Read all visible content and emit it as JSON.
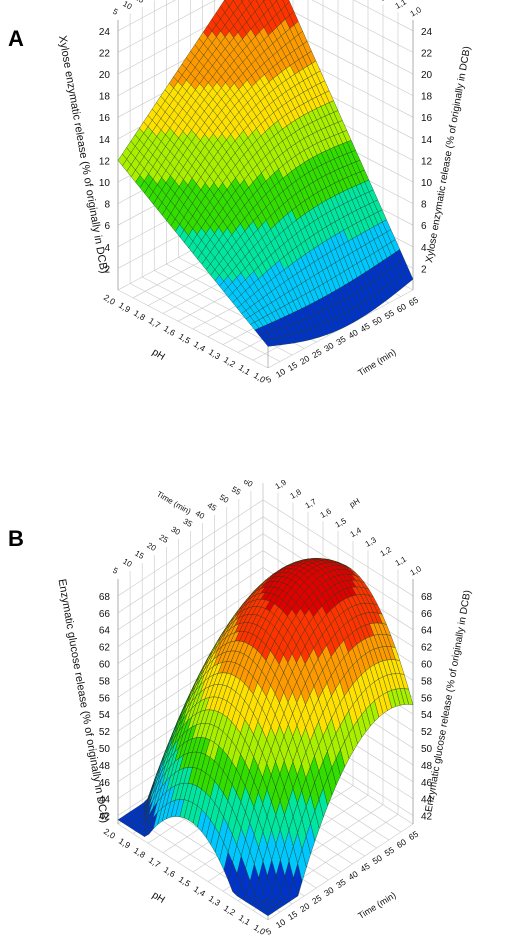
{
  "figure": {
    "panel_labels": [
      "A",
      "B"
    ]
  },
  "chart_data": [
    {
      "panel": "A",
      "type": "surface3d",
      "zlabel": "Xylose enzymatic release (% of originally in DCB)",
      "xlabel": "Time (min)",
      "ylabel": "pH",
      "zticks": [
        "2",
        "4",
        "6",
        "8",
        "10",
        "12",
        "14",
        "16",
        "18",
        "20",
        "22",
        "24"
      ],
      "timeticks": [
        "5",
        "10",
        "15",
        "20",
        "25",
        "30",
        "35",
        "40",
        "45",
        "50",
        "55",
        "60",
        "65"
      ],
      "phticks": [
        "1,0",
        "1,1",
        "1,2",
        "1,3",
        "1,4",
        "1,5",
        "1,6",
        "1,7",
        "1,8",
        "1,9",
        "2,0"
      ],
      "time_range": [
        5,
        65
      ],
      "ph_range": [
        1.0,
        2.0
      ],
      "zlim": [
        0,
        25
      ],
      "corner_values": {
        "t5_ph1": 2,
        "t65_ph1": 1,
        "t5_ph2": 12,
        "t65_ph2": 25
      },
      "colormap": [
        "#0033cc",
        "#00c8ff",
        "#00e6a0",
        "#33dd00",
        "#aaee00",
        "#ffe000",
        "#ff9900",
        "#ff3300",
        "#e00000"
      ]
    },
    {
      "panel": "B",
      "type": "surface3d",
      "zlabel": "Enzymatic glucose release (% of originally in DCB)",
      "xlabel": "Time (min)",
      "ylabel": "pH",
      "zticks": [
        "42",
        "44",
        "46",
        "48",
        "50",
        "52",
        "54",
        "56",
        "58",
        "60",
        "62",
        "64",
        "66",
        "68"
      ],
      "timeticks": [
        "5",
        "10",
        "15",
        "20",
        "25",
        "30",
        "35",
        "40",
        "45",
        "50",
        "55",
        "60",
        "65"
      ],
      "phticks": [
        "1,0",
        "1,1",
        "1,2",
        "1,3",
        "1,4",
        "1,5",
        "1,6",
        "1,7",
        "1,8",
        "1,9",
        "2,0"
      ],
      "time_range": [
        5,
        65
      ],
      "ph_range": [
        1.0,
        2.0
      ],
      "zlim": [
        41,
        70
      ],
      "corner_values": {
        "t5_ph1": 42,
        "t65_ph1": 55,
        "t5_ph2": 44,
        "t65_ph2": 57
      },
      "peak": {
        "time": 50,
        "ph": 1.45,
        "value": 69
      },
      "colormap": [
        "#0033cc",
        "#00c8ff",
        "#00e6a0",
        "#33dd00",
        "#aaee00",
        "#ffe000",
        "#ff9900",
        "#ff3300",
        "#e00000"
      ]
    }
  ]
}
